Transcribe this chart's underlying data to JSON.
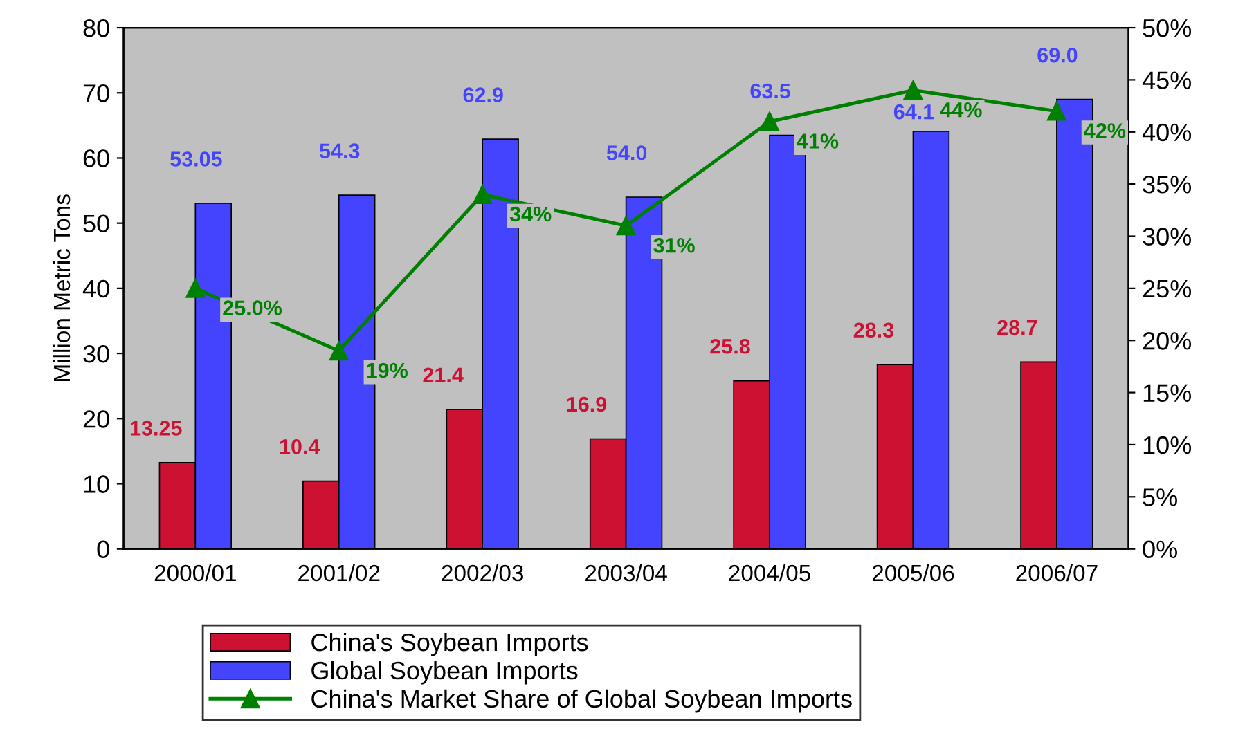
{
  "chart_data": {
    "type": "bar",
    "categories": [
      "2000/01",
      "2001/02",
      "2002/03",
      "2003/04",
      "2004/05",
      "2005/06",
      "2006/07"
    ],
    "ylabel": "Million Metric Tons",
    "ylim": [
      0,
      80
    ],
    "yticks": [
      0,
      10,
      20,
      30,
      40,
      50,
      60,
      70,
      80
    ],
    "y2lim": [
      0,
      50
    ],
    "y2ticks": [
      {
        "value": 0,
        "label": "0%"
      },
      {
        "value": 5,
        "label": "5%"
      },
      {
        "value": 10,
        "label": "10%"
      },
      {
        "value": 15,
        "label": "15%"
      },
      {
        "value": 20,
        "label": "20%"
      },
      {
        "value": 25,
        "label": "25%"
      },
      {
        "value": 30,
        "label": "30%"
      },
      {
        "value": 35,
        "label": "35%"
      },
      {
        "value": 40,
        "label": "40%"
      },
      {
        "value": 45,
        "label": "45%"
      },
      {
        "value": 50,
        "label": "50%"
      }
    ],
    "legend": "bottom",
    "grid": false,
    "series": [
      {
        "name": "China's Soybean Imports",
        "color": "#cc1133",
        "type": "bar",
        "values": [
          13.25,
          10.4,
          21.4,
          16.9,
          25.8,
          28.3,
          28.7
        ],
        "value_labels": [
          "13.25",
          "10.4",
          "21.4",
          "16.9",
          "25.8",
          "28.3",
          "28.7"
        ]
      },
      {
        "name": "Global Soybean Imports",
        "color": "#4444ff",
        "type": "bar",
        "values": [
          53.05,
          54.3,
          62.9,
          54.0,
          63.5,
          64.1,
          69.0
        ],
        "value_labels": [
          "53.05",
          "54.3",
          "62.9",
          "54.0",
          "63.5",
          "64.1",
          "69.0"
        ]
      },
      {
        "name": "China's Market Share of Global Soybean Imports",
        "color": "#008000",
        "type": "line",
        "axis": "y2",
        "marker": "triangle",
        "values": [
          25.0,
          19,
          34,
          31,
          41,
          44,
          42
        ],
        "value_labels": [
          "25.0%",
          "19%",
          "34%",
          "31%",
          "41%",
          "44%",
          "42%"
        ]
      }
    ]
  }
}
